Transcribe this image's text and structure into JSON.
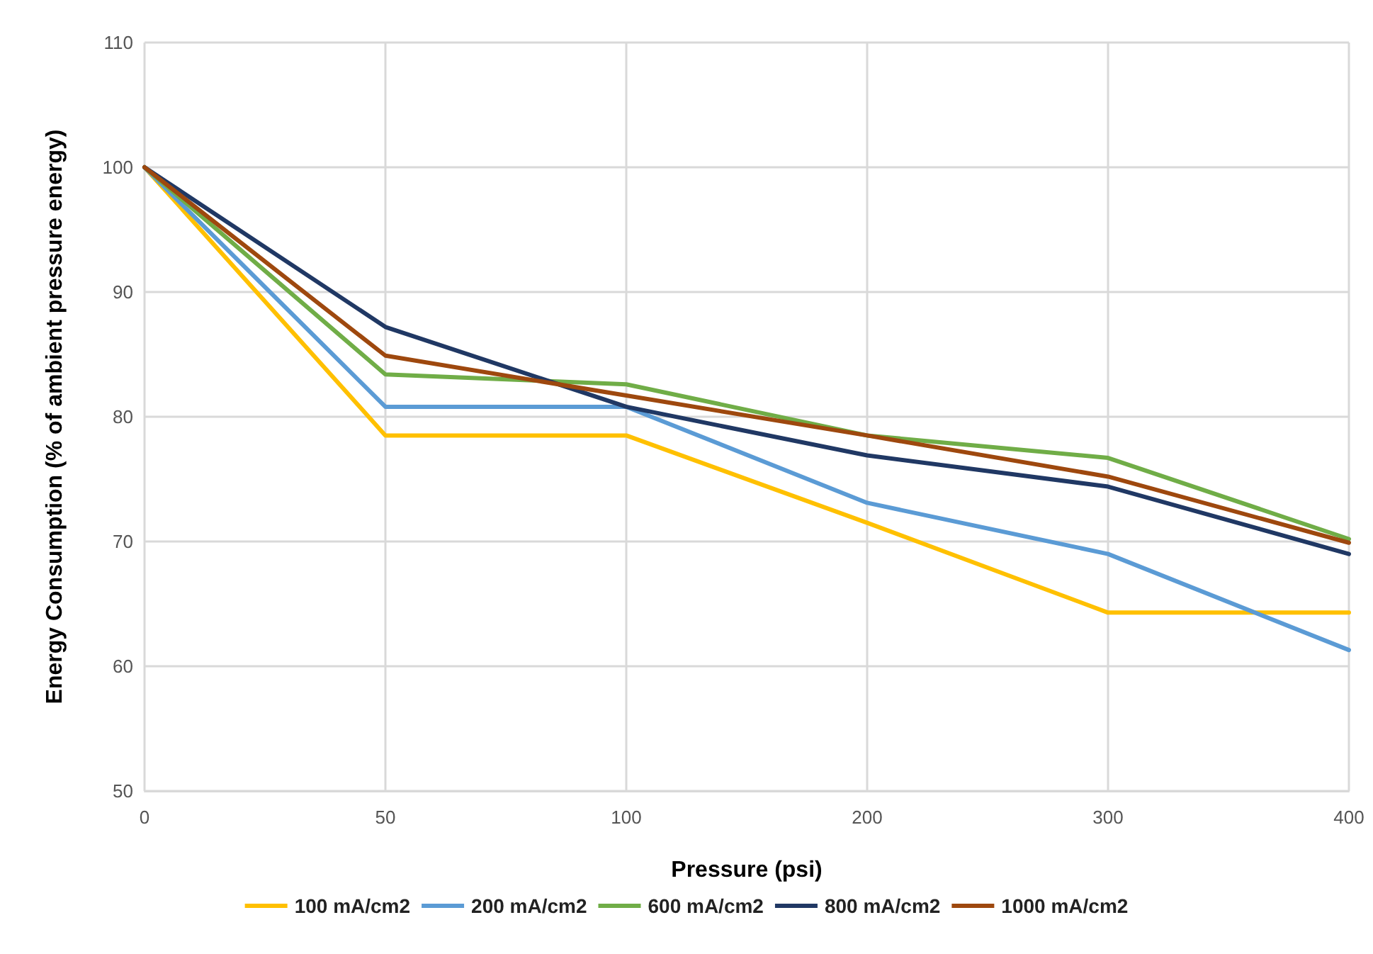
{
  "chart_data": {
    "type": "line",
    "xlabel": "Pressure (psi)",
    "ylabel": "Energy Consumption (% of ambient pressure energy)",
    "categories": [
      "0",
      "50",
      "100",
      "200",
      "300",
      "400"
    ],
    "series": [
      {
        "name": "100 mA/cm2",
        "color": "#ffc000",
        "values": [
          100,
          78.5,
          78.5,
          71.5,
          64.3,
          64.3
        ]
      },
      {
        "name": "200 mA/cm2",
        "color": "#5b9bd5",
        "values": [
          100,
          80.8,
          80.8,
          73.1,
          69.0,
          61.3
        ]
      },
      {
        "name": "600 mA/cm2",
        "color": "#70ad47",
        "values": [
          100,
          83.4,
          82.6,
          78.5,
          76.7,
          70.2
        ]
      },
      {
        "name": "800 mA/cm2",
        "color": "#203864",
        "values": [
          100,
          87.2,
          80.8,
          76.9,
          74.4,
          69.0
        ]
      },
      {
        "name": "1000 mA/cm2",
        "color": "#9e480e",
        "values": [
          100,
          84.9,
          81.7,
          78.5,
          75.2,
          69.9
        ]
      }
    ],
    "ylim": [
      50,
      110
    ],
    "yticks": [
      50,
      60,
      70,
      80,
      90,
      100,
      110
    ],
    "grid": true,
    "legend": "bottom",
    "marker": "none",
    "line_style": "solid"
  }
}
